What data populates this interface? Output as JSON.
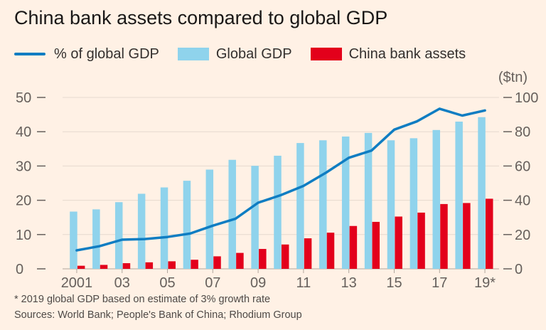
{
  "title": "China bank assets compared to global GDP",
  "legend": {
    "line_label": "% of global GDP",
    "gdp_label": "Global GDP",
    "assets_label": "China bank assets"
  },
  "unit_label": "($tn)",
  "notes": {
    "footnote": "* 2019 global GDP based on estimate of 3% growth rate",
    "sources": "Sources: World Bank; People's Bank of China; Rhodium Group"
  },
  "colors": {
    "background": "#fff1e5",
    "line": "#0f7dc2",
    "gdp_bar": "#8fd3ec",
    "assets_bar": "#e3001b",
    "axis_text": "#66605c"
  },
  "chart_data": {
    "type": "bar",
    "x": [
      "2001",
      "02",
      "03",
      "04",
      "05",
      "06",
      "07",
      "08",
      "09",
      "10",
      "11",
      "12",
      "13",
      "14",
      "15",
      "16",
      "17",
      "18",
      "19*"
    ],
    "x_tick_labels": [
      "2001",
      "03",
      "05",
      "07",
      "09",
      "11",
      "13",
      "15",
      "17",
      "19*"
    ],
    "series": [
      {
        "name": "Global GDP",
        "kind": "bar",
        "axis": "right",
        "color": "#8fd3ec",
        "values": [
          33.4,
          34.7,
          38.9,
          43.8,
          47.5,
          51.4,
          57.9,
          63.6,
          60.1,
          66.0,
          73.4,
          75.0,
          77.2,
          79.3,
          75.0,
          76.2,
          81.0,
          85.9,
          88.5
        ]
      },
      {
        "name": "China bank assets",
        "kind": "bar",
        "axis": "right",
        "color": "#e3001b",
        "values": [
          1.8,
          2.3,
          3.3,
          3.8,
          4.4,
          5.3,
          7.3,
          9.3,
          11.6,
          14.2,
          17.8,
          21.1,
          25.0,
          27.4,
          30.5,
          32.8,
          37.8,
          38.4,
          40.9
        ]
      },
      {
        "name": "% of global GDP",
        "kind": "line",
        "axis": "left",
        "color": "#0f7dc2",
        "values": [
          5.4,
          6.6,
          8.5,
          8.7,
          9.3,
          10.3,
          12.6,
          14.6,
          19.3,
          21.5,
          24.2,
          28.1,
          32.4,
          34.5,
          40.6,
          43.0,
          46.7,
          44.7,
          46.2
        ]
      }
    ],
    "y_left": {
      "ylim": [
        0,
        50
      ],
      "ticks": [
        0,
        10,
        20,
        30,
        40,
        50
      ]
    },
    "y_right": {
      "ylim": [
        0,
        100
      ],
      "ticks": [
        0,
        20,
        40,
        60,
        80,
        100
      ]
    },
    "grid": true
  }
}
